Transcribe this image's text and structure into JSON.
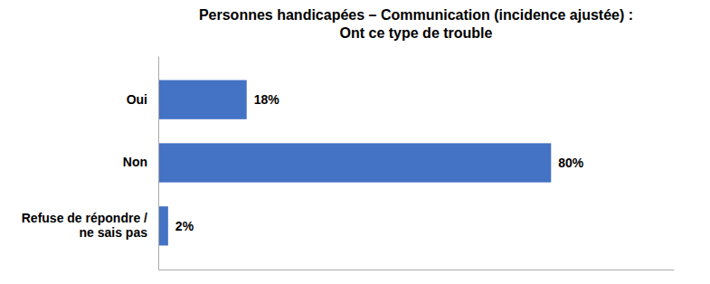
{
  "chart_data": {
    "type": "bar",
    "orientation": "horizontal",
    "title": "Personnes handicapées – Communication (incidence ajustée) :\nOnt ce type de trouble",
    "categories": [
      "Oui",
      "Non",
      "Refuse de répondre /\nne sais pas"
    ],
    "values": [
      18,
      80,
      2
    ],
    "value_labels": [
      "18%",
      "80%",
      "2%"
    ],
    "data_labels": true,
    "color": "#4472C4",
    "xlim": [
      0,
      105
    ],
    "grid": false,
    "tick_labels": "y"
  }
}
